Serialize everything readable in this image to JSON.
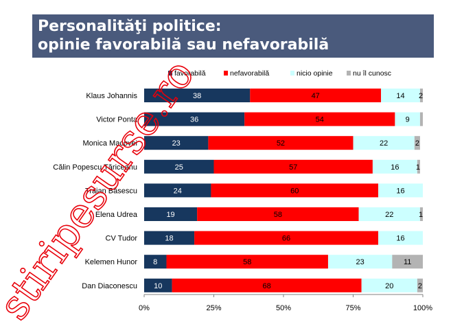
{
  "slide": {
    "title_line1": "Personalităţi politice:",
    "title_line2": "opinie favorabilă sau nefavorabilă"
  },
  "watermark": {
    "text": "stiripesurse.ro",
    "color": "#e8000a"
  },
  "chart_data": {
    "type": "bar",
    "orientation": "horizontal",
    "stacked": true,
    "categories": [
      "Klaus Johannis",
      "Victor Ponta",
      "Monica Macovei",
      "Călin Popescu Tăriceanu",
      "Traian Băsescu",
      "Elena Udrea",
      "CV Tudor",
      "Kelemen Hunor",
      "Dan Diaconescu"
    ],
    "series": [
      {
        "name": "favorabilă",
        "color": "#17375e",
        "label_color": "#ffffff",
        "values": [
          38,
          36,
          23,
          25,
          24,
          19,
          18,
          8,
          10
        ]
      },
      {
        "name": "nefavorabilă",
        "color": "#ff0000",
        "label_color": "#000000",
        "values": [
          47,
          54,
          52,
          57,
          60,
          58,
          66,
          58,
          68
        ]
      },
      {
        "name": "nicio opinie",
        "color": "#ccffff",
        "label_color": "#000000",
        "values": [
          14,
          9,
          22,
          16,
          16,
          22,
          16,
          23,
          20
        ]
      },
      {
        "name": "nu îl cunosc",
        "color": "#b3b3b3",
        "label_color": "#000000",
        "values": [
          2,
          1,
          2,
          1,
          0,
          1,
          0,
          11,
          2
        ]
      }
    ],
    "data_labels": [
      [
        "38",
        "47",
        "14",
        "2"
      ],
      [
        "36",
        "54",
        "9",
        ""
      ],
      [
        "23",
        "52",
        "22",
        "2"
      ],
      [
        "25",
        "57",
        "16",
        "1"
      ],
      [
        "24",
        "60",
        "16",
        ""
      ],
      [
        "19",
        "58",
        "22",
        "1"
      ],
      [
        "18",
        "66",
        "16",
        ""
      ],
      [
        "8",
        "58",
        "23",
        "11"
      ],
      [
        "10",
        "68",
        "20",
        "2"
      ]
    ],
    "x_ticks": [
      "0%",
      "25%",
      "50%",
      "75%",
      "100%"
    ],
    "xlim": [
      0,
      100
    ],
    "legend_position": "top",
    "grid": false
  }
}
